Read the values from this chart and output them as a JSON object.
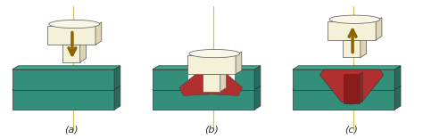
{
  "background_color": "#ffffff",
  "teal_dark": "#276b5e",
  "teal_mid": "#338f7a",
  "teal_light": "#3daa90",
  "teal_top": "#4ec9a8",
  "tool_cream_face": "#f5f0d8",
  "tool_cream_top": "#faf6e6",
  "tool_cream_side": "#ddd5b5",
  "arrow_color": "#8B6400",
  "axis_line_color": "#d4c060",
  "red_hot": "#b03030",
  "red_hot2": "#c94040",
  "label_color": "#333333",
  "label_fontsize": 8,
  "panels": [
    "(a)",
    "(b)",
    "(c)"
  ]
}
